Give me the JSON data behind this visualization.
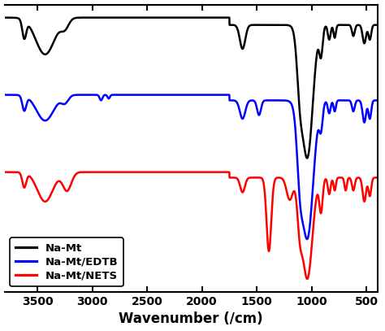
{
  "title": "",
  "xlabel": "Wavenumber (/cm)",
  "xlim": [
    3800,
    400
  ],
  "xticks": [
    3500,
    3000,
    2500,
    2000,
    1500,
    1000,
    500
  ],
  "colors": {
    "NaMt": "#000000",
    "NaMtEDTB": "#0000ff",
    "NaMtNETS": "#ff0000"
  },
  "legend_labels": [
    "Na-Mt",
    "Na-Mt/EDTB",
    "Na-Mt/NETS"
  ],
  "legend_colors": [
    "#000000",
    "#0000ff",
    "#ff0000"
  ],
  "background": "#ffffff",
  "linewidth": 1.8,
  "figsize": [
    4.74,
    4.07
  ],
  "dpi": 100
}
